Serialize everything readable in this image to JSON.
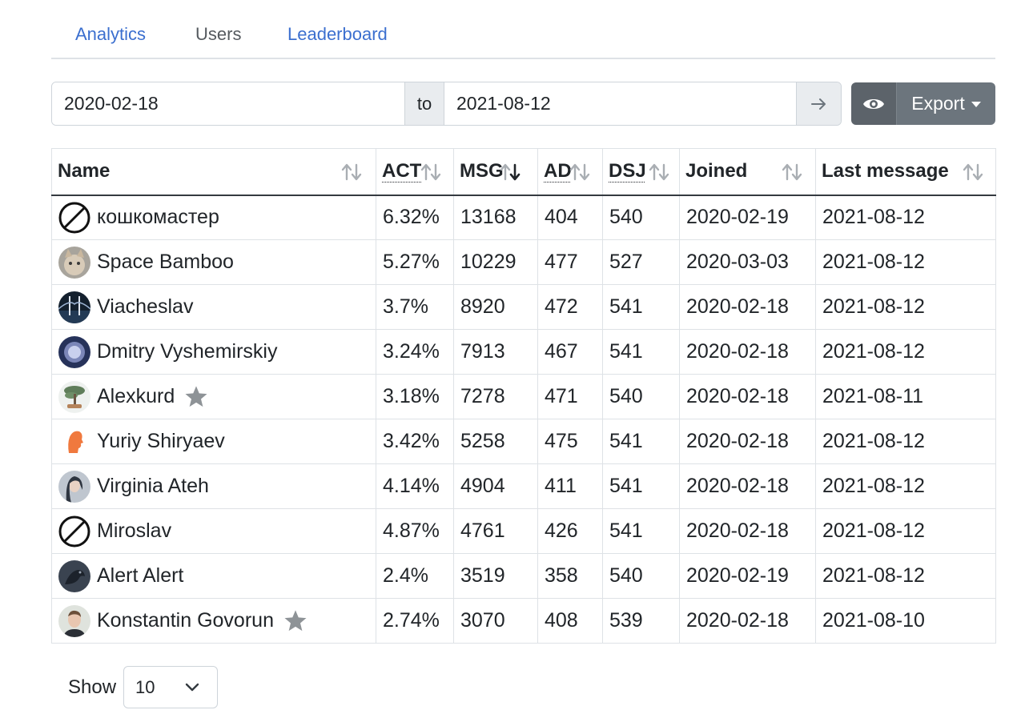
{
  "tabs": [
    {
      "label": "Analytics",
      "active": false
    },
    {
      "label": "Users",
      "active": true
    },
    {
      "label": "Leaderboard",
      "active": false
    }
  ],
  "date_range": {
    "from": "2020-02-18",
    "separator": "to",
    "to": "2021-08-12"
  },
  "actions": {
    "export_label": "Export"
  },
  "table": {
    "columns": [
      "Name",
      "ACT",
      "MSG",
      "AD",
      "DSJ",
      "Joined",
      "Last message"
    ],
    "sorted_column": "MSG",
    "rows": [
      {
        "name": "кошкомастер",
        "act": "6.32%",
        "msg": "13168",
        "ad": "404",
        "dsj": "540",
        "joined": "2020-02-19",
        "last": "2021-08-12",
        "avatar": "blocked-icon",
        "star": false
      },
      {
        "name": "Space Bamboo",
        "act": "5.27%",
        "msg": "10229",
        "ad": "477",
        "dsj": "527",
        "joined": "2020-03-03",
        "last": "2021-08-12",
        "avatar": "cat-avatar",
        "star": false
      },
      {
        "name": "Viacheslav",
        "act": "3.7%",
        "msg": "8920",
        "ad": "472",
        "dsj": "541",
        "joined": "2020-02-18",
        "last": "2021-08-12",
        "avatar": "night-bridge-avatar",
        "star": false
      },
      {
        "name": "Dmitry Vyshemirskiy",
        "act": "3.24%",
        "msg": "7913",
        "ad": "467",
        "dsj": "541",
        "joined": "2020-02-18",
        "last": "2021-08-12",
        "avatar": "moon-avatar",
        "star": false
      },
      {
        "name": "Alexkurd",
        "act": "3.18%",
        "msg": "7278",
        "ad": "471",
        "dsj": "540",
        "joined": "2020-02-18",
        "last": "2021-08-11",
        "avatar": "bonsai-avatar",
        "star": true
      },
      {
        "name": "Yuriy Shiryaev",
        "act": "3.42%",
        "msg": "5258",
        "ad": "475",
        "dsj": "541",
        "joined": "2020-02-18",
        "last": "2021-08-12",
        "avatar": "orange-profile-avatar",
        "star": false
      },
      {
        "name": "Virginia Ateh",
        "act": "4.14%",
        "msg": "4904",
        "ad": "411",
        "dsj": "541",
        "joined": "2020-02-18",
        "last": "2021-08-12",
        "avatar": "woman-photo-avatar",
        "star": false
      },
      {
        "name": "Miroslav",
        "act": "4.87%",
        "msg": "4761",
        "ad": "426",
        "dsj": "541",
        "joined": "2020-02-18",
        "last": "2021-08-12",
        "avatar": "blocked-icon",
        "star": false
      },
      {
        "name": "Alert Alert",
        "act": "2.4%",
        "msg": "3519",
        "ad": "358",
        "dsj": "540",
        "joined": "2020-02-19",
        "last": "2021-08-12",
        "avatar": "dark-bird-avatar",
        "star": false
      },
      {
        "name": "Konstantin Govorun",
        "act": "2.74%",
        "msg": "3070",
        "ad": "408",
        "dsj": "539",
        "joined": "2020-02-18",
        "last": "2021-08-10",
        "avatar": "man-photo-avatar",
        "star": true
      }
    ]
  },
  "pagination": {
    "show_label": "Show",
    "page_size": "10"
  },
  "colors": {
    "link": "#3b6fcf",
    "button": "#6c757d",
    "border": "#dee2e6",
    "star": "#8e9397"
  }
}
